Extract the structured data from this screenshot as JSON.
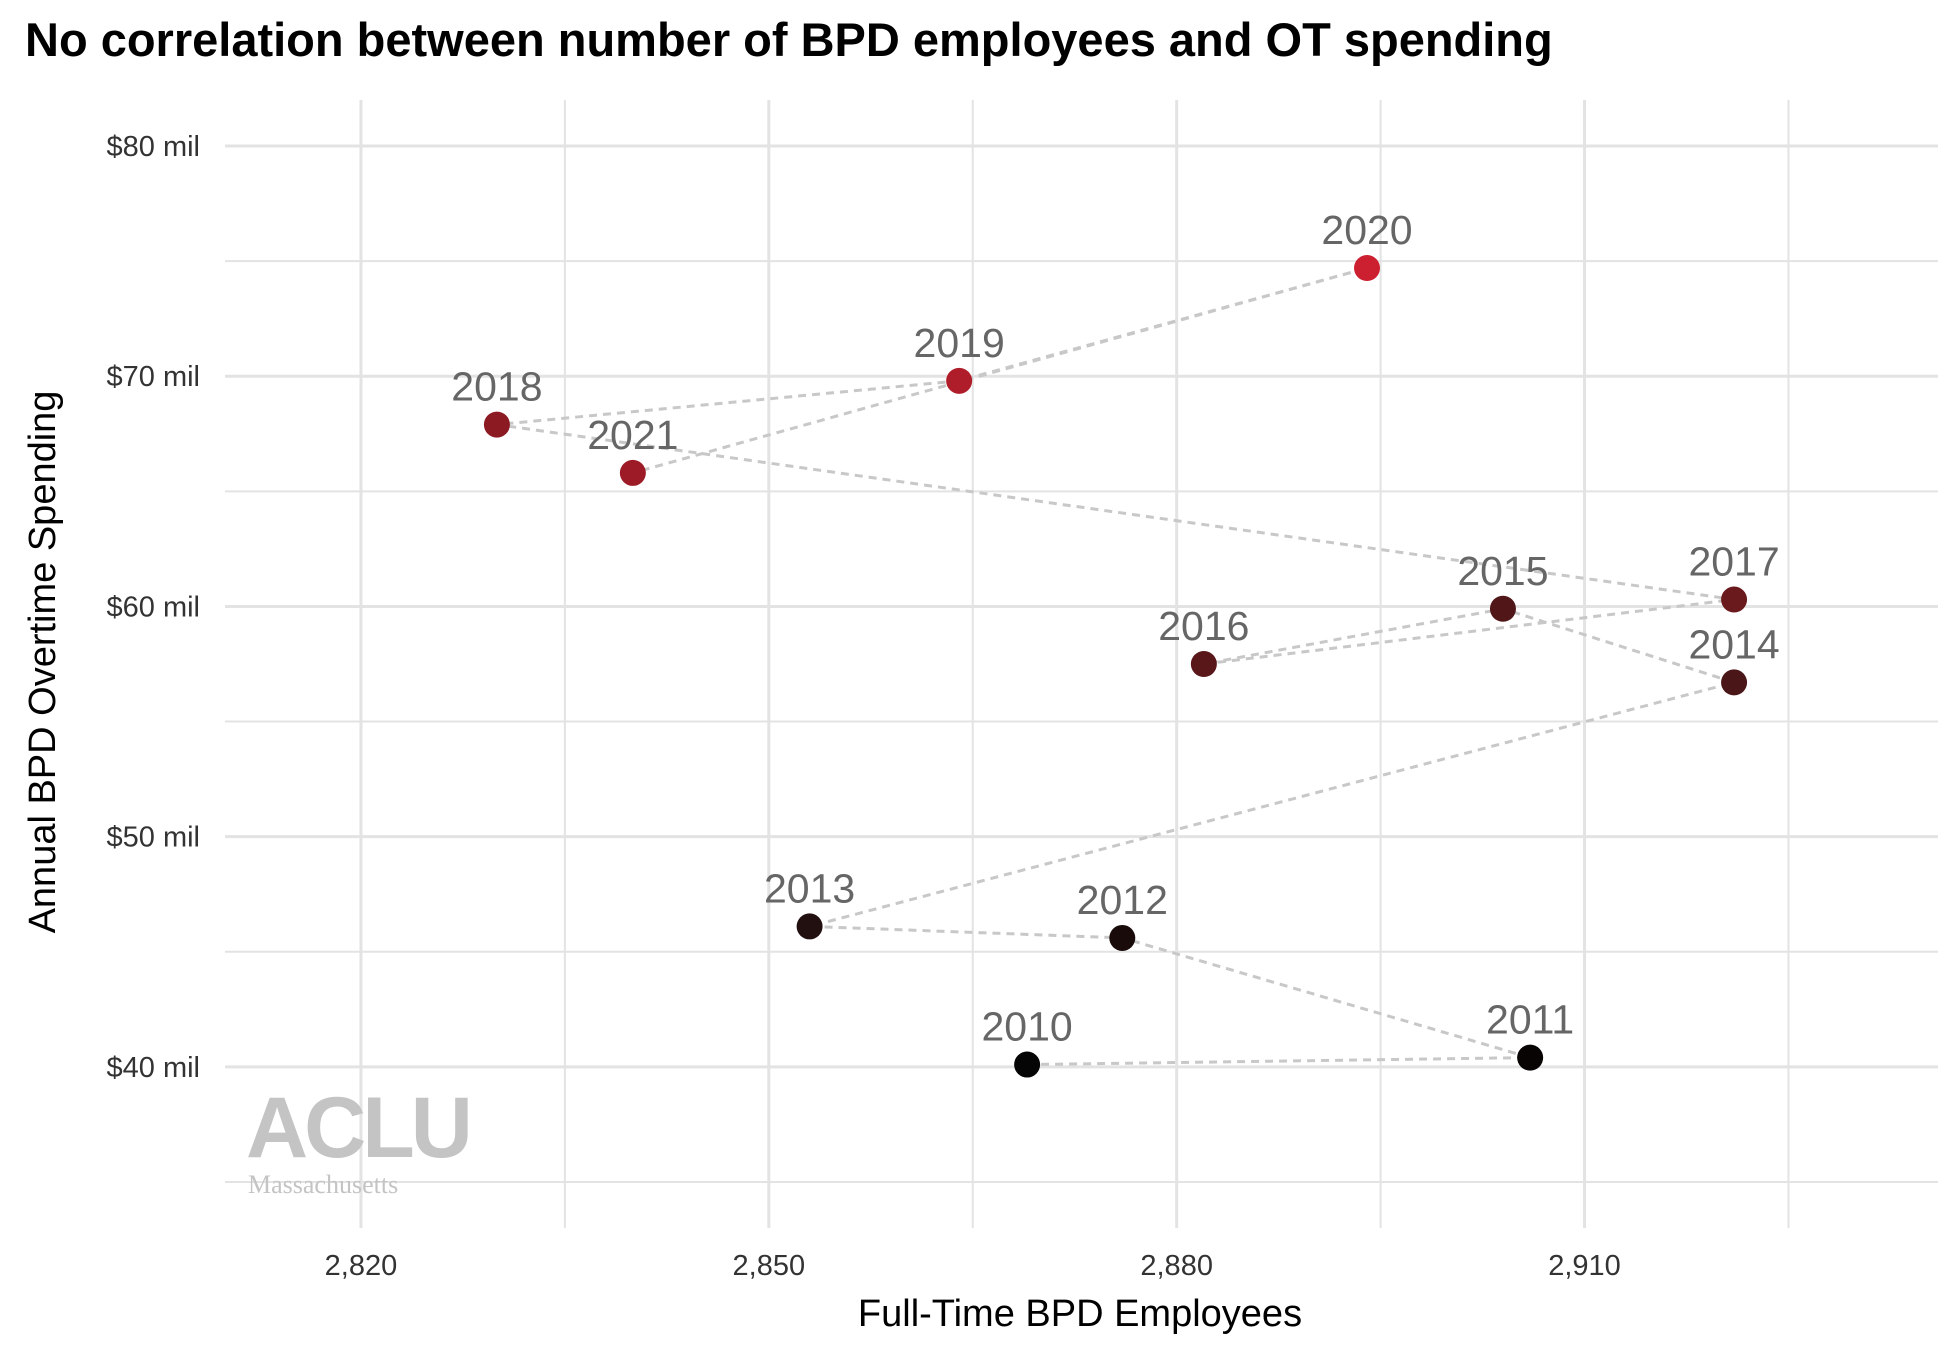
{
  "chart_data": {
    "type": "scatter",
    "title": "No correlation between number of BPD employees and OT spending",
    "xlabel": "Full-Time BPD Employees",
    "ylabel": "Annual BPD Overtime Spending",
    "xlim": [
      2810,
      2936
    ],
    "ylim": [
      33,
      82
    ],
    "x_ticks": [
      2820,
      2850,
      2880,
      2910
    ],
    "x_tick_labels": [
      "2,820",
      "2,850",
      "2,880",
      "2,910"
    ],
    "y_ticks": [
      40,
      50,
      60,
      70,
      80
    ],
    "y_tick_labels": [
      "$40 mil",
      "$50 mil",
      "$60 mil",
      "$70 mil",
      "$80 mil"
    ],
    "grid": true,
    "connected_by": "dashed line in year order",
    "color_scale": "year, from black (2010) to red (2020)",
    "points": [
      {
        "label": "2010",
        "x": 2869,
        "y": 40.1,
        "color": "#050505"
      },
      {
        "label": "2011",
        "x": 2906,
        "y": 40.4,
        "color": "#080404"
      },
      {
        "label": "2012",
        "x": 2876,
        "y": 45.6,
        "color": "#1a0b0b"
      },
      {
        "label": "2013",
        "x": 2853,
        "y": 46.1,
        "color": "#221010"
      },
      {
        "label": "2014",
        "x": 2921,
        "y": 56.7,
        "color": "#4a1618"
      },
      {
        "label": "2015",
        "x": 2904,
        "y": 59.9,
        "color": "#511618"
      },
      {
        "label": "2016",
        "x": 2882,
        "y": 57.5,
        "color": "#5a1719"
      },
      {
        "label": "2017",
        "x": 2921,
        "y": 60.3,
        "color": "#6a191c"
      },
      {
        "label": "2018",
        "x": 2830,
        "y": 67.9,
        "color": "#8b1a22"
      },
      {
        "label": "2019",
        "x": 2864,
        "y": 69.8,
        "color": "#b01d2a"
      },
      {
        "label": "2020",
        "x": 2894,
        "y": 74.7,
        "color": "#cc1f30"
      },
      {
        "label": "2021",
        "x": 2840,
        "y": 65.8,
        "color": "#9c1b26"
      }
    ]
  },
  "logo": {
    "main": "ACLU",
    "sub": "Massachusetts"
  }
}
